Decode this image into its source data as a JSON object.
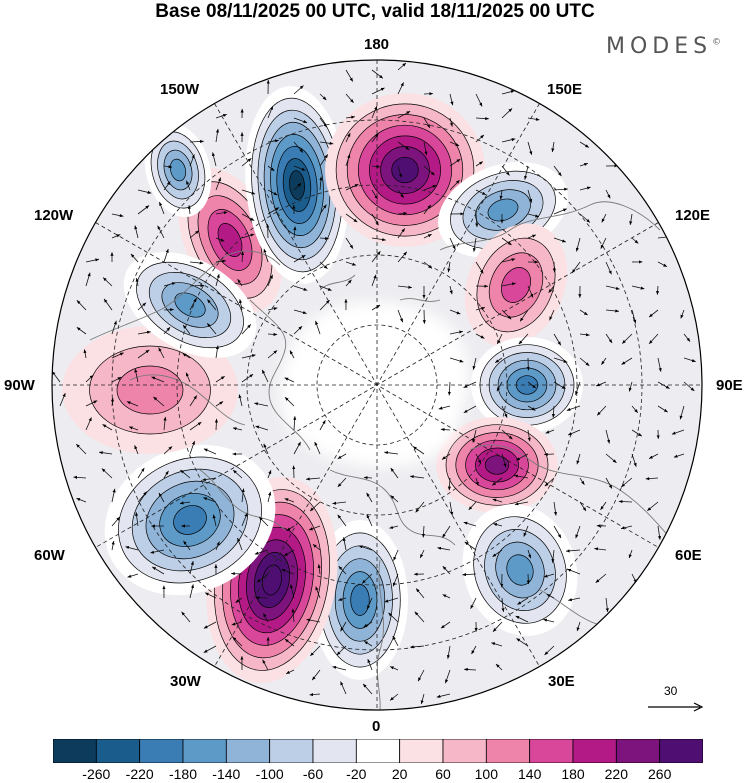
{
  "title": "Base 08/11/2025 00 UTC, valid 18/11/2025 00 UTC",
  "brand": "MODES",
  "brand_mark": "©",
  "longitude_labels": {
    "n180": "180",
    "w150": "150W",
    "e150": "150E",
    "w120": "120W",
    "e120": "120E",
    "w90": "90W",
    "e90": "90E",
    "w60": "60W",
    "e60": "60E",
    "w30": "30W",
    "e30": "30E",
    "s0": "0"
  },
  "vector_scale": {
    "label": "30"
  },
  "colorbar": {
    "colors": [
      "#0d3b5c",
      "#1a5d8c",
      "#3a7db5",
      "#5d9ac8",
      "#8fb4d8",
      "#bccfe6",
      "#e3e6f1",
      "#ffffff",
      "#fbe0e4",
      "#f6b8c8",
      "#ee84aa",
      "#d9479a",
      "#b31a85",
      "#7d137d",
      "#4f0f72"
    ],
    "ticks": [
      "-260",
      "-220",
      "-180",
      "-140",
      "-100",
      "-60",
      "-20",
      "20",
      "60",
      "100",
      "140",
      "180",
      "220",
      "260"
    ]
  },
  "anomaly_centers": [
    {
      "name": "lobe-150w-pos",
      "value": 140,
      "sign": "positive"
    },
    {
      "name": "lobe-160w-neg",
      "value": -260,
      "sign": "negative"
    },
    {
      "name": "lobe-180-pos",
      "value": 220,
      "sign": "positive"
    },
    {
      "name": "lobe-150e-neg",
      "value": -140,
      "sign": "negative"
    },
    {
      "name": "lobe-125e-pos",
      "value": 100,
      "sign": "positive"
    },
    {
      "name": "lobe-90e-neg",
      "value": -180,
      "sign": "negative"
    },
    {
      "name": "lobe-70e-pos",
      "value": 180,
      "sign": "positive"
    },
    {
      "name": "lobe-40e-neg",
      "value": -140,
      "sign": "negative"
    },
    {
      "name": "lobe-15e-neg",
      "value": -180,
      "sign": "negative"
    },
    {
      "name": "lobe-20w-pos",
      "value": 260,
      "sign": "positive"
    },
    {
      "name": "lobe-50w-neg",
      "value": -180,
      "sign": "negative"
    },
    {
      "name": "lobe-95w-pos",
      "value": 60,
      "sign": "positive"
    },
    {
      "name": "lobe-125w-neg",
      "value": -140,
      "sign": "negative"
    },
    {
      "name": "lobe-165w-neg",
      "value": -140,
      "sign": "negative"
    }
  ]
}
